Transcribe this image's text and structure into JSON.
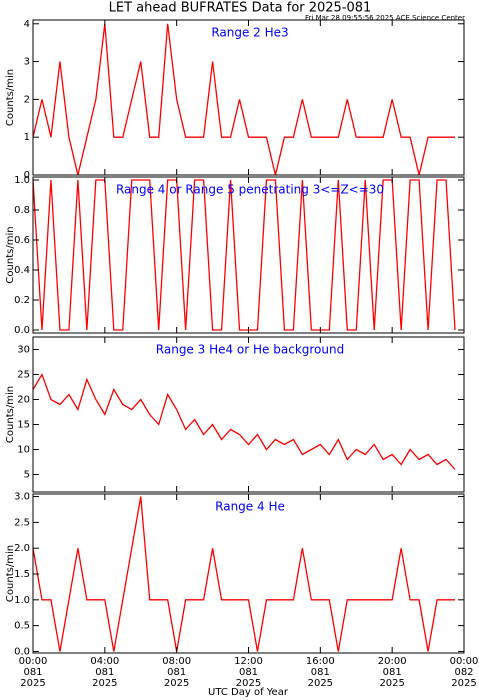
{
  "chart_data": [
    {
      "type": "line",
      "title": "LET ahead BUFRATES Data for 2025-081",
      "subtitle": "Fri Mar 28 09:55:56 2025 ACE Science Center",
      "annotation": "Range 2 He3",
      "ylabel": "Counts/min",
      "color": "#ff0000",
      "x": [
        0,
        0.5,
        1,
        1.5,
        2,
        2.5,
        3,
        3.5,
        4,
        4.5,
        5,
        5.5,
        6,
        6.5,
        7,
        7.5,
        8,
        8.5,
        9,
        9.5,
        10,
        10.5,
        11,
        11.5,
        12,
        12.5,
        13,
        13.5,
        14,
        14.5,
        15,
        15.5,
        16,
        16.5,
        17,
        17.5,
        18,
        18.5,
        19,
        19.5,
        20,
        20.5,
        21,
        21.5,
        22,
        22.5,
        23,
        23.5
      ],
      "values": [
        1,
        2,
        1,
        3,
        1,
        0,
        1,
        2,
        4,
        1,
        1,
        2,
        3,
        1,
        1,
        4,
        2,
        1,
        1,
        1,
        3,
        1,
        1,
        2,
        1,
        1,
        1,
        0,
        1,
        1,
        2,
        1,
        1,
        1,
        1,
        2,
        1,
        1,
        1,
        1,
        2,
        1,
        1,
        0,
        1,
        1,
        1,
        1
      ],
      "xlim": [
        0,
        24
      ],
      "xticks": [
        0,
        4,
        8,
        12,
        16,
        20,
        24
      ],
      "ylim": [
        0,
        4.1
      ],
      "yticks": [
        0,
        1,
        2,
        3,
        4
      ]
    },
    {
      "type": "line",
      "annotation": "Range 4 or Range 5 penetrating 3<=Z<=30",
      "ylabel": "Counts/min",
      "color": "#ff0000",
      "x": [
        0,
        0.5,
        1,
        1.5,
        2,
        2.5,
        3,
        3.5,
        4,
        4.5,
        5,
        5.5,
        6,
        6.5,
        7,
        7.5,
        8,
        8.5,
        9,
        9.5,
        10,
        10.5,
        11,
        11.5,
        12,
        12.5,
        13,
        13.5,
        14,
        14.5,
        15,
        15.5,
        16,
        16.5,
        17,
        17.5,
        18,
        18.5,
        19,
        19.5,
        20,
        20.5,
        21,
        21.5,
        22,
        22.5,
        23,
        23.5
      ],
      "values": [
        1,
        0,
        1,
        0,
        0,
        1,
        0,
        1,
        1,
        0,
        0,
        1,
        1,
        1,
        0,
        1,
        1,
        0,
        1,
        1,
        0,
        0,
        1,
        0,
        0,
        0,
        1,
        1,
        0,
        0,
        1,
        0,
        0,
        0,
        1,
        0,
        0,
        1,
        0,
        1,
        1,
        0,
        1,
        1,
        0,
        1,
        1,
        0
      ],
      "xlim": [
        0,
        24
      ],
      "xticks": [
        0,
        4,
        8,
        12,
        16,
        20,
        24
      ],
      "ylim": [
        -0.02,
        1.02
      ],
      "yticks": [
        {
          "value": 0,
          "label": "0.0"
        },
        {
          "value": 0.2,
          "label": "0.2"
        },
        {
          "value": 0.4,
          "label": "0.4"
        },
        {
          "value": 0.6,
          "label": "0.6"
        },
        {
          "value": 0.8,
          "label": "0.8"
        },
        {
          "value": 1,
          "label": "1.0"
        }
      ]
    },
    {
      "type": "line",
      "annotation": "Range 3 He4 or He background",
      "ylabel": "Counts/min",
      "color": "#ff0000",
      "x": [
        0,
        0.5,
        1,
        1.5,
        2,
        2.5,
        3,
        3.5,
        4,
        4.5,
        5,
        5.5,
        6,
        6.5,
        7,
        7.5,
        8,
        8.5,
        9,
        9.5,
        10,
        10.5,
        11,
        11.5,
        12,
        12.5,
        13,
        13.5,
        14,
        14.5,
        15,
        15.5,
        16,
        16.5,
        17,
        17.5,
        18,
        18.5,
        19,
        19.5,
        20,
        20.5,
        21,
        21.5,
        22,
        22.5,
        23,
        23.5
      ],
      "values": [
        22,
        25,
        20,
        19,
        21,
        18,
        24,
        20,
        17,
        22,
        19,
        18,
        20,
        17,
        15,
        21,
        18,
        14,
        16,
        13,
        15,
        12,
        14,
        13,
        11,
        13,
        10,
        12,
        11,
        12,
        9,
        10,
        11,
        9,
        12,
        8,
        10,
        9,
        11,
        8,
        9,
        7,
        10,
        8,
        9,
        7,
        8,
        6
      ],
      "xlim": [
        0,
        24
      ],
      "xticks": [
        0,
        4,
        8,
        12,
        16,
        20,
        24
      ],
      "ylim": [
        1.5,
        32.5
      ],
      "yticks": [
        5,
        10,
        15,
        20,
        25,
        30
      ]
    },
    {
      "type": "line",
      "annotation": "Range 4 He",
      "ylabel": "Counts/min",
      "xlabel": "UTC Day of Year",
      "color": "#ff0000",
      "x": [
        0,
        0.5,
        1,
        1.5,
        2,
        2.5,
        3,
        3.5,
        4,
        4.5,
        5,
        5.5,
        6,
        6.5,
        7,
        7.5,
        8,
        8.5,
        9,
        9.5,
        10,
        10.5,
        11,
        11.5,
        12,
        12.5,
        13,
        13.5,
        14,
        14.5,
        15,
        15.5,
        16,
        16.5,
        17,
        17.5,
        18,
        18.5,
        19,
        19.5,
        20,
        20.5,
        21,
        21.5,
        22,
        22.5,
        23,
        23.5
      ],
      "values": [
        2,
        1,
        1,
        0,
        1,
        2,
        1,
        1,
        1,
        0,
        1,
        2,
        3,
        1,
        1,
        1,
        0,
        1,
        1,
        1,
        2,
        1,
        1,
        1,
        1,
        0,
        1,
        1,
        1,
        1,
        2,
        1,
        1,
        1,
        0,
        1,
        1,
        1,
        1,
        1,
        1,
        2,
        1,
        1,
        0,
        1,
        1,
        1
      ],
      "xlim": [
        0,
        24
      ],
      "xticks": [
        {
          "value": 0,
          "label": "00:00"
        },
        {
          "value": 4,
          "label": "04:00"
        },
        {
          "value": 8,
          "label": "08:00"
        },
        {
          "value": 12,
          "label": "12:00"
        },
        {
          "value": 16,
          "label": "16:00"
        },
        {
          "value": 20,
          "label": "20:00"
        },
        {
          "value": 24,
          "label": "00:00"
        }
      ],
      "xtick_days": [
        "081",
        "081",
        "081",
        "081",
        "081",
        "081",
        "082"
      ],
      "xtick_years": [
        "2025",
        "2025",
        "2025",
        "2025",
        "2025",
        "2025",
        "2025"
      ],
      "ylim": [
        -0.03,
        3.05
      ],
      "yticks": [
        {
          "value": 0,
          "label": "0.0"
        },
        {
          "value": 0.5,
          "label": "0.5"
        },
        {
          "value": 1,
          "label": "1.0"
        },
        {
          "value": 1.5,
          "label": "1.5"
        },
        {
          "value": 2,
          "label": "2.0"
        },
        {
          "value": 2.5,
          "label": "2.5"
        },
        {
          "value": 3,
          "label": "3.0"
        }
      ]
    }
  ]
}
